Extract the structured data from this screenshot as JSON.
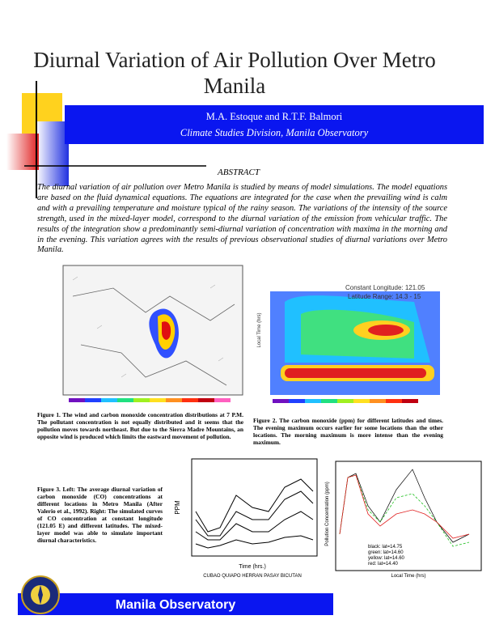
{
  "header": {
    "title": "Diurnal Variation of Air Pollution Over Metro Manila",
    "authors": "M.A. Estoque and R.T.F. Balmori",
    "affiliation": "Climate Studies Division, Manila Observatory"
  },
  "abstract": {
    "heading": "ABSTRACT",
    "text": "The diurnal variation of air pollution over Metro Manila is studied by means of model simulations. The model equations are based on the fluid dynamical equations. The equations are integrated for the case when the prevailing wind is calm and with a prevailing temperature and moisture typical of the rainy season. The variations of the intensity of the source strength, used in the mixed-layer model, correspond to the diurnal variation of the emission from vehicular traffic. The results of the integration show a predominantly semi-diurnal variation of concentration with maxima in the morning and in the evening. This variation agrees with the results of previous observational studies of diurnal variations over Metro Manila."
  },
  "figures": [
    {
      "caption": "Figure 1. The wind and carbon monoxide concentration distributions at 7 P.M. The pollutant concentration is not equally distributed and it seems that the pollution moves towards northeast. But due to the Sierra Madre Mountains, an opposite wind is produced which limits the eastward movement of pollution."
    },
    {
      "caption": "Figure 2. The carbon monoxide (ppm) for different latitudes and times. The evening maximum occurs earlier for some locations than the other locations. The morning maximum is more intense than the evening maximum.",
      "labels": [
        "Constant Longitude: 121.05",
        "Latitude Range: 14.3 - 15",
        "Local Time (hrs)"
      ]
    },
    {
      "caption": "Figure 3. Left: The average diurnal variation of carbon monoxide (CO) concentrations at different locations in Metro Manila (After Valerio et al., 1992). Right: The simulated curves of CO concentration at constant longitude (121.05 E) and different latitudes. The mixed-layer model was able to simulate important diurnal characteristics.",
      "left_labels": [
        "PPM",
        "Time (hrs.)",
        "CUBAO  QUIAPO  HERRAN  PASAY  BICUTAN"
      ],
      "right_labels": [
        "Pollution Concentration (ppm)",
        "Local Time (hrs)",
        "black: lat=14.75",
        "green: lat=14.60",
        "yellow: lat=14.60",
        "red: lat=14.40"
      ]
    }
  ],
  "footer": {
    "organization": "Manila Observatory"
  }
}
